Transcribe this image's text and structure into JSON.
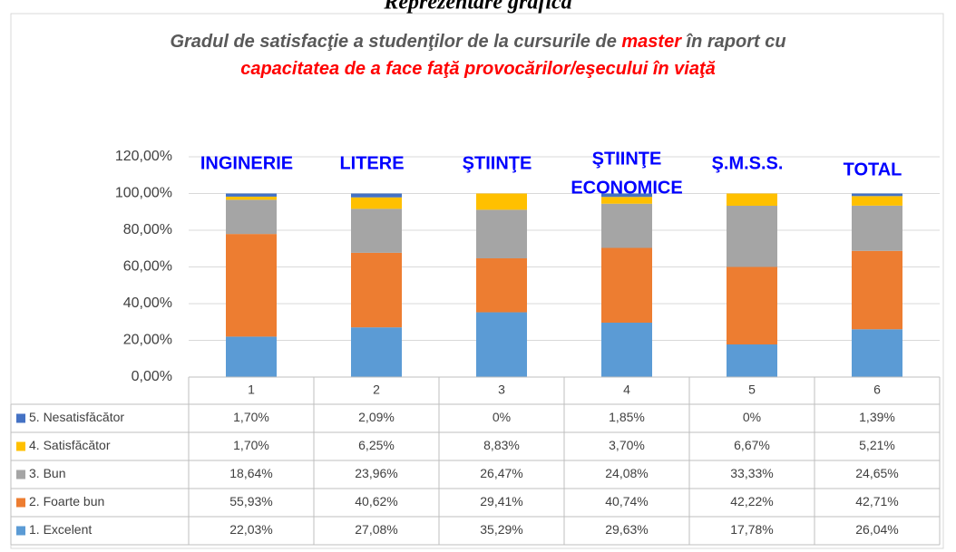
{
  "chart_data": {
    "type": "stacked_bar",
    "header": "Reprezentare grafică",
    "title_lines": [
      [
        {
          "text": "Gradul de satisfacţie a studenţilor de la cursurile de ",
          "color": "#595959"
        },
        {
          "text": "master",
          "color": "#ff0000"
        },
        {
          "text": " în raport cu",
          "color": "#595959"
        }
      ],
      [
        {
          "text": "capacitatea de a face faţă provocărilor/eşecului în viaţă",
          "color": "#ff0000"
        }
      ]
    ],
    "categories": [
      "1",
      "2",
      "3",
      "4",
      "5",
      "6"
    ],
    "annotations": [
      [
        "INGINERIE"
      ],
      [
        "LITERE"
      ],
      [
        "ŞTIINŢE"
      ],
      [
        "ŞTIINŢE",
        "ECONOMICE"
      ],
      [
        "Ş.M.S.S."
      ],
      [
        "TOTAL"
      ]
    ],
    "annotation_color": "#0000ff",
    "series": [
      {
        "name": "1. Excelent",
        "color": "#5b9bd5",
        "values": [
          22.03,
          27.08,
          35.29,
          29.63,
          17.78,
          26.04
        ],
        "value_labels": [
          "22,03%",
          "27,08%",
          "35,29%",
          "29,63%",
          "17,78%",
          "26,04%"
        ]
      },
      {
        "name": "2. Foarte bun",
        "color": "#ed7d31",
        "values": [
          55.93,
          40.62,
          29.41,
          40.74,
          42.22,
          42.71
        ],
        "value_labels": [
          "55,93%",
          "40,62%",
          "29,41%",
          "40,74%",
          "42,22%",
          "42,71%"
        ]
      },
      {
        "name": "3. Bun",
        "color": "#a5a5a5",
        "values": [
          18.64,
          23.96,
          26.47,
          24.08,
          33.33,
          24.65
        ],
        "value_labels": [
          "18,64%",
          "23,96%",
          "26,47%",
          "24,08%",
          "33,33%",
          "24,65%"
        ]
      },
      {
        "name": "4. Satisfăcător",
        "color": "#ffc000",
        "values": [
          1.7,
          6.25,
          8.83,
          3.7,
          6.67,
          5.21
        ],
        "value_labels": [
          "1,70%",
          "6,25%",
          "8,83%",
          "3,70%",
          "6,67%",
          "5,21%"
        ]
      },
      {
        "name": "5. Nesatisfăcător",
        "color": "#4472c4",
        "values": [
          1.7,
          2.09,
          0,
          1.85,
          0,
          1.39
        ],
        "value_labels": [
          "1,70%",
          "2,09%",
          "0%",
          "1,85%",
          "0%",
          "1,39%"
        ]
      }
    ],
    "ylim": [
      0,
      120
    ],
    "yticks": [
      {
        "value": 0,
        "label": "0,00%"
      },
      {
        "value": 20,
        "label": "20,00%"
      },
      {
        "value": 40,
        "label": "40,00%"
      },
      {
        "value": 60,
        "label": "60,00%"
      },
      {
        "value": 80,
        "label": "80,00%"
      },
      {
        "value": 100,
        "label": "100,00%"
      },
      {
        "value": 120,
        "label": "120,00%"
      }
    ],
    "grid": true
  }
}
